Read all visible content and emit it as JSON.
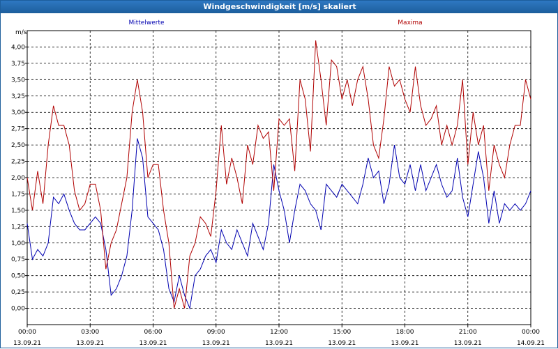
{
  "window": {
    "title": "Windgeschwindigkeit [m/s] skaliert"
  },
  "colors": {
    "mean": "#0000b0",
    "max": "#b00000",
    "grid": "#000000",
    "frame": "#1d5e9c"
  },
  "chart_data": {
    "type": "line",
    "title": "Windgeschwindigkeit [m/s] skaliert",
    "ylabel": "m/s",
    "ylim": [
      -0.25,
      4.25
    ],
    "yticks": [
      "0,00",
      "0,25",
      "0,50",
      "0,75",
      "1,00",
      "1,25",
      "1,50",
      "1,75",
      "2,00",
      "2,25",
      "2,50",
      "2,75",
      "3,00",
      "3,25",
      "3,50",
      "3,75",
      "4,00"
    ],
    "xlim_hours": [
      0,
      24
    ],
    "xticks": [
      {
        "time": "00:00",
        "date": "13.09.21"
      },
      {
        "time": "03:00",
        "date": "13.09.21"
      },
      {
        "time": "06:00",
        "date": "13.09.21"
      },
      {
        "time": "09:00",
        "date": "13.09.21"
      },
      {
        "time": "12:00",
        "date": "13.09.21"
      },
      {
        "time": "15:00",
        "date": "13.09.21"
      },
      {
        "time": "18:00",
        "date": "13.09.21"
      },
      {
        "time": "21:00",
        "date": "13.09.21"
      },
      {
        "time": "00:00",
        "date": "14.09.21"
      }
    ],
    "grid": true,
    "legend_position": "top",
    "series": [
      {
        "name": "Mittelwerte",
        "color": "#0000b0",
        "x_hours": [
          0,
          0.25,
          0.5,
          0.75,
          1.0,
          1.25,
          1.5,
          1.75,
          2.0,
          2.25,
          2.5,
          2.75,
          3.0,
          3.25,
          3.5,
          3.75,
          4.0,
          4.25,
          4.5,
          4.75,
          5.0,
          5.25,
          5.5,
          5.75,
          6.0,
          6.25,
          6.5,
          6.75,
          7.0,
          7.25,
          7.5,
          7.75,
          8.0,
          8.25,
          8.5,
          8.75,
          9.0,
          9.25,
          9.5,
          9.75,
          10.0,
          10.25,
          10.5,
          10.75,
          11.0,
          11.25,
          11.5,
          11.75,
          12.0,
          12.25,
          12.5,
          12.75,
          13.0,
          13.25,
          13.5,
          13.75,
          14.0,
          14.25,
          14.5,
          14.75,
          15.0,
          15.25,
          15.5,
          15.75,
          16.0,
          16.25,
          16.5,
          16.75,
          17.0,
          17.25,
          17.5,
          17.75,
          18.0,
          18.25,
          18.5,
          18.75,
          19.0,
          19.25,
          19.5,
          19.75,
          20.0,
          20.25,
          20.5,
          20.75,
          21.0,
          21.25,
          21.5,
          21.75,
          22.0,
          22.25,
          22.5,
          22.75,
          23.0,
          23.25,
          23.5,
          23.75,
          24.0
        ],
        "values": [
          1.3,
          0.75,
          0.9,
          0.8,
          1.0,
          1.7,
          1.6,
          1.75,
          1.5,
          1.3,
          1.2,
          1.2,
          1.3,
          1.4,
          1.3,
          0.9,
          0.2,
          0.3,
          0.5,
          0.8,
          1.5,
          2.6,
          2.3,
          1.4,
          1.3,
          1.2,
          0.9,
          0.3,
          0.1,
          0.5,
          0.2,
          0.0,
          0.5,
          0.6,
          0.8,
          0.9,
          0.7,
          1.2,
          1.0,
          0.9,
          1.2,
          1.0,
          0.8,
          1.3,
          1.1,
          0.9,
          1.3,
          2.2,
          1.8,
          1.5,
          1.0,
          1.5,
          1.9,
          1.8,
          1.6,
          1.5,
          1.2,
          1.9,
          1.8,
          1.7,
          1.9,
          1.8,
          1.7,
          1.6,
          1.9,
          2.3,
          2.0,
          2.1,
          1.6,
          1.9,
          2.5,
          2.0,
          1.9,
          2.2,
          1.8,
          2.2,
          1.8,
          2.0,
          2.2,
          1.9,
          1.7,
          1.8,
          2.3,
          1.7,
          1.4,
          1.9,
          2.4,
          2.0,
          1.3,
          1.8,
          1.3,
          1.6,
          1.5,
          1.6,
          1.5,
          1.6,
          1.8
        ]
      },
      {
        "name": "Maxima",
        "color": "#b00000",
        "x_hours": [
          0,
          0.25,
          0.5,
          0.75,
          1.0,
          1.25,
          1.5,
          1.75,
          2.0,
          2.25,
          2.5,
          2.75,
          3.0,
          3.25,
          3.5,
          3.75,
          4.0,
          4.25,
          4.5,
          4.75,
          5.0,
          5.25,
          5.5,
          5.75,
          6.0,
          6.25,
          6.5,
          6.75,
          7.0,
          7.25,
          7.5,
          7.75,
          8.0,
          8.25,
          8.5,
          8.75,
          9.0,
          9.25,
          9.5,
          9.75,
          10.0,
          10.25,
          10.5,
          10.75,
          11.0,
          11.25,
          11.5,
          11.75,
          12.0,
          12.25,
          12.5,
          12.75,
          13.0,
          13.25,
          13.5,
          13.75,
          14.0,
          14.25,
          14.5,
          14.75,
          15.0,
          15.25,
          15.5,
          15.75,
          16.0,
          16.25,
          16.5,
          16.75,
          17.0,
          17.25,
          17.5,
          17.75,
          18.0,
          18.25,
          18.5,
          18.75,
          19.0,
          19.25,
          19.5,
          19.75,
          20.0,
          20.25,
          20.5,
          20.75,
          21.0,
          21.25,
          21.5,
          21.75,
          22.0,
          22.25,
          22.5,
          22.75,
          23.0,
          23.25,
          23.5,
          23.75,
          24.0
        ],
        "values": [
          2.0,
          1.5,
          2.1,
          1.6,
          2.5,
          3.1,
          2.8,
          2.8,
          2.5,
          1.8,
          1.5,
          1.6,
          1.9,
          1.9,
          1.5,
          0.6,
          1.0,
          1.2,
          1.6,
          2.0,
          3.0,
          3.5,
          3.0,
          2.0,
          2.2,
          2.2,
          1.5,
          1.0,
          0.0,
          0.3,
          0.0,
          0.8,
          1.0,
          1.4,
          1.3,
          1.1,
          1.8,
          2.8,
          1.9,
          2.3,
          2.0,
          1.6,
          2.5,
          2.2,
          2.8,
          2.6,
          2.7,
          1.8,
          2.9,
          2.8,
          2.9,
          2.1,
          3.5,
          3.2,
          2.4,
          4.1,
          3.5,
          2.8,
          3.8,
          3.7,
          3.2,
          3.5,
          3.1,
          3.5,
          3.7,
          3.2,
          2.5,
          2.3,
          2.9,
          3.7,
          3.4,
          3.5,
          3.2,
          3.0,
          3.7,
          3.1,
          2.8,
          2.9,
          3.1,
          2.5,
          2.8,
          2.5,
          2.8,
          3.5,
          2.2,
          3.0,
          2.5,
          2.8,
          1.8,
          2.5,
          2.2,
          2.0,
          2.5,
          2.8,
          2.8,
          3.5,
          3.2
        ]
      }
    ]
  }
}
